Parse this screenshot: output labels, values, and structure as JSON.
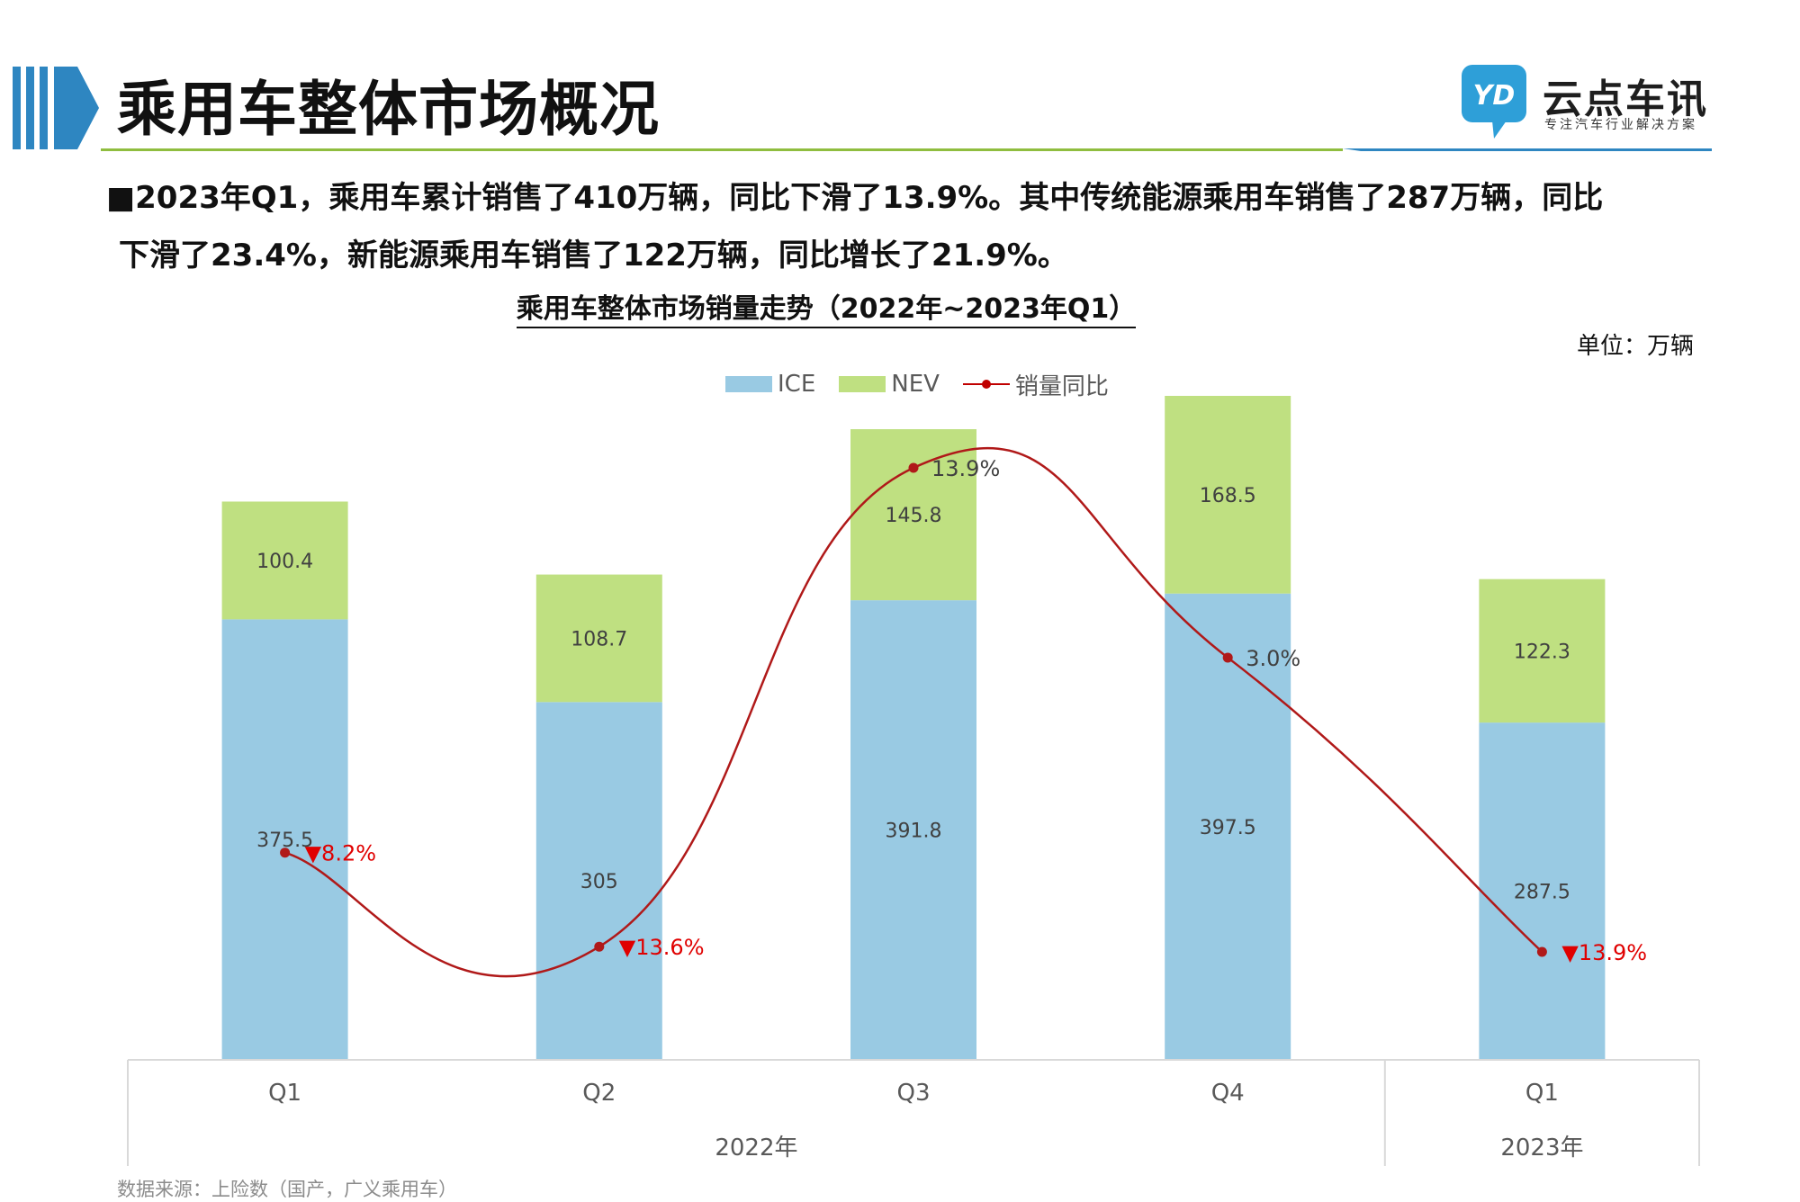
{
  "page": {
    "title": "乘用车整体市场概况",
    "summary_line1": "■2023年Q1，乘用车累计销售了410万辆，同比下滑了13.9%。其中传统能源乘用车销售了287万辆，同比",
    "summary_line2": "下滑了23.4%，新能源乘用车销售了122万辆，同比增长了21.9%。",
    "source": "数据来源：上险数（国产，广义乘用车）"
  },
  "logo": {
    "name": "云点车讯",
    "tagline": "专注汽车行业解决方案",
    "mark_text": "YD"
  },
  "colors": {
    "accent_blue": "#2e86c1",
    "ice": "#99cae3",
    "nev": "#bfe081",
    "yoy_line": "#b01919",
    "yoy_label": "#e00000",
    "divider_green": "#8fbd3f"
  },
  "chart_data": {
    "type": "bar",
    "stacked": true,
    "title": "乘用车整体市场销量走势（2022年~2023年Q1）",
    "unit_label": "单位：万辆",
    "categories": [
      "Q1",
      "Q2",
      "Q3",
      "Q4",
      "Q1"
    ],
    "year_groups": [
      {
        "label": "2022年",
        "categories": [
          "Q1",
          "Q2",
          "Q3",
          "Q4"
        ]
      },
      {
        "label": "2023年",
        "categories": [
          "Q1"
        ]
      }
    ],
    "series": [
      {
        "name": "ICE",
        "values": [
          375.5,
          305,
          391.8,
          397.5,
          287.5
        ],
        "color": "#99cae3"
      },
      {
        "name": "NEV",
        "values": [
          100.4,
          108.7,
          145.8,
          168.5,
          122.3
        ],
        "color": "#bfe081"
      }
    ],
    "line_series": {
      "name": "销量同比",
      "values": [
        -8.2,
        -13.6,
        13.9,
        3.0,
        -13.9
      ],
      "labels": [
        "▼8.2%",
        "▼13.6%",
        "13.9%",
        "3.0%",
        "▼13.9%"
      ],
      "smooth": true
    },
    "legend": [
      "ICE",
      "NEV",
      "销量同比"
    ],
    "legend_position": "top-center",
    "ylim": [
      0,
      566
    ],
    "y_axis_visible": false,
    "grid": false
  }
}
